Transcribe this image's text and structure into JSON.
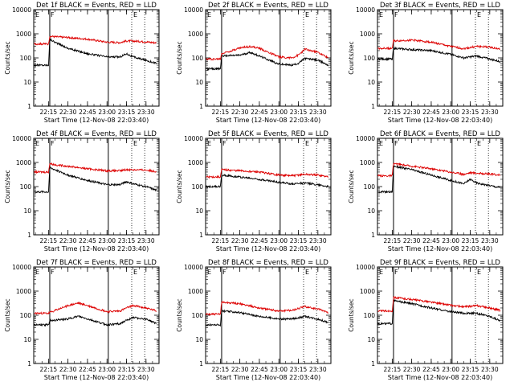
{
  "figure": {
    "background": "#ffffff",
    "ytick_labels": [
      "1",
      "10",
      "100",
      "1000",
      "10000"
    ],
    "xtick_labels": [
      "22:15",
      "22:30",
      "22:45",
      "23:00",
      "23:15",
      "23:30"
    ],
    "series_colors": {
      "events": "#000000",
      "lld": "#dd0000"
    }
  },
  "chart_data": [
    {
      "type": "line",
      "title": "Det 1f BLACK = Events, RED = LLD",
      "xlabel": "Start Time (12-Nov-08 22:03:40)",
      "ylabel": "Counts/sec",
      "yscale": "log",
      "ylim": [
        1,
        10000
      ],
      "xlim": [
        "22:03:40",
        "23:40"
      ],
      "annotations": [
        "F",
        "E",
        "E"
      ],
      "markers": [
        "22:16",
        "23:01"
      ],
      "dotted": [
        "23:19",
        "23:29"
      ],
      "series": [
        {
          "color": "#000000",
          "x": [
            "22:04",
            "22:15",
            "22:16",
            "22:20",
            "22:30",
            "22:45",
            "23:00",
            "23:10",
            "23:15",
            "23:20",
            "23:30",
            "23:38"
          ],
          "values": [
            50,
            50,
            600,
            450,
            250,
            150,
            110,
            110,
            150,
            110,
            80,
            60
          ]
        },
        {
          "color": "#dd0000",
          "x": [
            "22:04",
            "22:15",
            "22:16",
            "22:20",
            "22:30",
            "22:45",
            "23:00",
            "23:10",
            "23:15",
            "23:20",
            "23:30",
            "23:38"
          ],
          "values": [
            380,
            380,
            800,
            750,
            700,
            600,
            450,
            430,
            500,
            500,
            460,
            420
          ]
        }
      ]
    },
    {
      "type": "line",
      "title": "Det 2f BLACK = Events, RED = LLD",
      "xlabel": "Start Time (12-Nov-08 22:03:40)",
      "ylabel": "Counts/sec",
      "yscale": "log",
      "ylim": [
        1,
        10000
      ],
      "xlim": [
        "22:03:40",
        "23:40"
      ],
      "annotations": [
        "F",
        "E",
        "E"
      ],
      "markers": [
        "22:16",
        "23:01"
      ],
      "dotted": [
        "23:19",
        "23:29"
      ],
      "series": [
        {
          "color": "#000000",
          "x": [
            "22:04",
            "22:15",
            "22:16",
            "22:30",
            "22:38",
            "22:45",
            "23:00",
            "23:10",
            "23:15",
            "23:20",
            "23:30",
            "23:38"
          ],
          "values": [
            35,
            35,
            120,
            130,
            170,
            120,
            55,
            50,
            60,
            95,
            80,
            50
          ]
        },
        {
          "color": "#dd0000",
          "x": [
            "22:04",
            "22:15",
            "22:16",
            "22:30",
            "22:38",
            "22:45",
            "23:00",
            "23:10",
            "23:15",
            "23:20",
            "23:30",
            "23:38"
          ],
          "values": [
            90,
            90,
            150,
            260,
            300,
            250,
            110,
            100,
            130,
            230,
            170,
            100
          ]
        }
      ]
    },
    {
      "type": "line",
      "title": "Det 3f BLACK = Events, RED = LLD",
      "xlabel": "Start Time (12-Nov-08 22:03:40)",
      "ylabel": "Counts/sec",
      "yscale": "log",
      "ylim": [
        1,
        10000
      ],
      "xlim": [
        "22:03:40",
        "23:40"
      ],
      "annotations": [
        "F",
        "E",
        "E"
      ],
      "markers": [
        "22:16",
        "23:01"
      ],
      "dotted": [
        "23:19",
        "23:29"
      ],
      "series": [
        {
          "color": "#000000",
          "x": [
            "22:04",
            "22:15",
            "22:16",
            "22:30",
            "22:45",
            "23:00",
            "23:10",
            "23:20",
            "23:30",
            "23:38"
          ],
          "values": [
            90,
            90,
            250,
            220,
            200,
            140,
            100,
            120,
            90,
            70
          ]
        },
        {
          "color": "#dd0000",
          "x": [
            "22:04",
            "22:15",
            "22:16",
            "22:30",
            "22:45",
            "23:00",
            "23:10",
            "23:20",
            "23:30",
            "23:38"
          ],
          "values": [
            250,
            250,
            500,
            550,
            450,
            300,
            240,
            300,
            280,
            230
          ]
        }
      ]
    },
    {
      "type": "line",
      "title": "Det 4f BLACK = Events, RED = LLD",
      "xlabel": "Start Time (12-Nov-08 22:03:40)",
      "ylabel": "Counts/sec",
      "yscale": "log",
      "ylim": [
        1,
        10000
      ],
      "xlim": [
        "22:03:40",
        "23:40"
      ],
      "annotations": [
        "F",
        "E",
        "E"
      ],
      "markers": [
        "22:16",
        "23:01"
      ],
      "dotted": [
        "23:19",
        "23:29"
      ],
      "series": [
        {
          "color": "#000000",
          "x": [
            "22:04",
            "22:15",
            "22:16",
            "22:20",
            "22:30",
            "22:45",
            "23:00",
            "23:10",
            "23:15",
            "23:20",
            "23:30",
            "23:38"
          ],
          "values": [
            60,
            60,
            600,
            500,
            300,
            180,
            120,
            120,
            160,
            130,
            100,
            70
          ]
        },
        {
          "color": "#dd0000",
          "x": [
            "22:04",
            "22:15",
            "22:16",
            "22:20",
            "22:30",
            "22:45",
            "23:00",
            "23:10",
            "23:15",
            "23:20",
            "23:30",
            "23:38"
          ],
          "values": [
            400,
            400,
            900,
            800,
            700,
            550,
            450,
            450,
            500,
            500,
            480,
            420
          ]
        }
      ]
    },
    {
      "type": "line",
      "title": "Det 5f BLACK = Events, RED = LLD",
      "xlabel": "Start Time (12-Nov-08 22:03:40)",
      "ylabel": "Counts/sec",
      "yscale": "log",
      "ylim": [
        1,
        10000
      ],
      "xlim": [
        "22:03:40",
        "23:40"
      ],
      "annotations": [
        "F",
        "E",
        "E"
      ],
      "markers": [
        "22:16",
        "23:01"
      ],
      "dotted": [
        "23:19",
        "23:29"
      ],
      "series": [
        {
          "color": "#000000",
          "x": [
            "22:04",
            "22:15",
            "22:16",
            "22:30",
            "22:45",
            "23:00",
            "23:10",
            "23:20",
            "23:30",
            "23:38"
          ],
          "values": [
            100,
            100,
            300,
            250,
            200,
            150,
            130,
            140,
            120,
            100
          ]
        },
        {
          "color": "#dd0000",
          "x": [
            "22:04",
            "22:15",
            "22:16",
            "22:30",
            "22:45",
            "23:00",
            "23:10",
            "23:20",
            "23:30",
            "23:38"
          ],
          "values": [
            250,
            250,
            500,
            450,
            400,
            300,
            280,
            320,
            300,
            250
          ]
        }
      ]
    },
    {
      "type": "line",
      "title": "Det 6f BLACK = Events, RED = LLD",
      "xlabel": "Start Time (12-Nov-08 22:03:40)",
      "ylabel": "Counts/sec",
      "yscale": "log",
      "ylim": [
        1,
        10000
      ],
      "xlim": [
        "22:03:40",
        "23:40"
      ],
      "annotations": [
        "F",
        "E",
        "E"
      ],
      "markers": [
        "22:16",
        "23:01"
      ],
      "dotted": [
        "23:19",
        "23:29"
      ],
      "series": [
        {
          "color": "#000000",
          "x": [
            "22:04",
            "22:15",
            "22:16",
            "22:30",
            "22:45",
            "23:00",
            "23:10",
            "23:15",
            "23:20",
            "23:30",
            "23:38"
          ],
          "values": [
            60,
            60,
            700,
            500,
            300,
            180,
            130,
            200,
            140,
            110,
            90
          ]
        },
        {
          "color": "#dd0000",
          "x": [
            "22:04",
            "22:15",
            "22:16",
            "22:30",
            "22:45",
            "23:00",
            "23:10",
            "23:15",
            "23:20",
            "23:30",
            "23:38"
          ],
          "values": [
            280,
            280,
            900,
            700,
            550,
            400,
            320,
            380,
            360,
            330,
            300
          ]
        }
      ]
    },
    {
      "type": "line",
      "title": "Det 7f BLACK = Events, RED = LLD",
      "xlabel": "Start Time (12-Nov-08 22:03:40)",
      "ylabel": "Counts/sec",
      "yscale": "log",
      "ylim": [
        1,
        10000
      ],
      "xlim": [
        "22:03:40",
        "23:40"
      ],
      "annotations": [
        "F",
        "E",
        "E"
      ],
      "markers": [
        "22:16",
        "23:01"
      ],
      "dotted": [
        "23:19",
        "23:29"
      ],
      "series": [
        {
          "color": "#000000",
          "x": [
            "22:04",
            "22:15",
            "22:16",
            "22:30",
            "22:38",
            "22:45",
            "23:00",
            "23:10",
            "23:15",
            "23:20",
            "23:30",
            "23:38"
          ],
          "values": [
            40,
            40,
            60,
            70,
            90,
            70,
            40,
            45,
            60,
            80,
            70,
            45
          ]
        },
        {
          "color": "#dd0000",
          "x": [
            "22:04",
            "22:15",
            "22:16",
            "22:30",
            "22:38",
            "22:45",
            "23:00",
            "23:10",
            "23:15",
            "23:20",
            "23:30",
            "23:38"
          ],
          "values": [
            120,
            120,
            130,
            250,
            320,
            250,
            140,
            150,
            200,
            250,
            200,
            150
          ]
        }
      ]
    },
    {
      "type": "line",
      "title": "Det 8f BLACK = Events, RED = LLD",
      "xlabel": "Start Time (12-Nov-08 22:03:40)",
      "ylabel": "Counts/sec",
      "yscale": "log",
      "ylim": [
        1,
        10000
      ],
      "xlim": [
        "22:03:40",
        "23:40"
      ],
      "annotations": [
        "F",
        "E",
        "E"
      ],
      "markers": [
        "22:16",
        "23:01"
      ],
      "dotted": [
        "23:19",
        "23:29"
      ],
      "series": [
        {
          "color": "#000000",
          "x": [
            "22:04",
            "22:15",
            "22:16",
            "22:30",
            "22:45",
            "23:00",
            "23:10",
            "23:20",
            "23:30",
            "23:38"
          ],
          "values": [
            40,
            40,
            150,
            130,
            90,
            70,
            70,
            90,
            70,
            50
          ]
        },
        {
          "color": "#dd0000",
          "x": [
            "22:04",
            "22:15",
            "22:16",
            "22:30",
            "22:45",
            "23:00",
            "23:10",
            "23:20",
            "23:30",
            "23:38"
          ],
          "values": [
            110,
            110,
            350,
            300,
            200,
            150,
            160,
            230,
            180,
            130
          ]
        }
      ]
    },
    {
      "type": "line",
      "title": "Det 9f BLACK = Events, RED = LLD",
      "xlabel": "Start Time (12-Nov-08 22:03:40)",
      "ylabel": "Counts/sec",
      "yscale": "log",
      "ylim": [
        1,
        10000
      ],
      "xlim": [
        "22:03:40",
        "23:40"
      ],
      "annotations": [
        "F",
        "E",
        "E"
      ],
      "markers": [
        "22:16",
        "23:01"
      ],
      "dotted": [
        "23:19",
        "23:29"
      ],
      "series": [
        {
          "color": "#000000",
          "x": [
            "22:04",
            "22:15",
            "22:16",
            "22:30",
            "22:45",
            "23:00",
            "23:10",
            "23:20",
            "23:30",
            "23:38"
          ],
          "values": [
            45,
            45,
            400,
            300,
            200,
            140,
            120,
            120,
            90,
            60
          ]
        },
        {
          "color": "#dd0000",
          "x": [
            "22:04",
            "22:15",
            "22:16",
            "22:30",
            "22:45",
            "23:00",
            "23:10",
            "23:20",
            "23:30",
            "23:38"
          ],
          "values": [
            150,
            150,
            550,
            450,
            350,
            260,
            220,
            250,
            200,
            160
          ]
        }
      ]
    }
  ]
}
